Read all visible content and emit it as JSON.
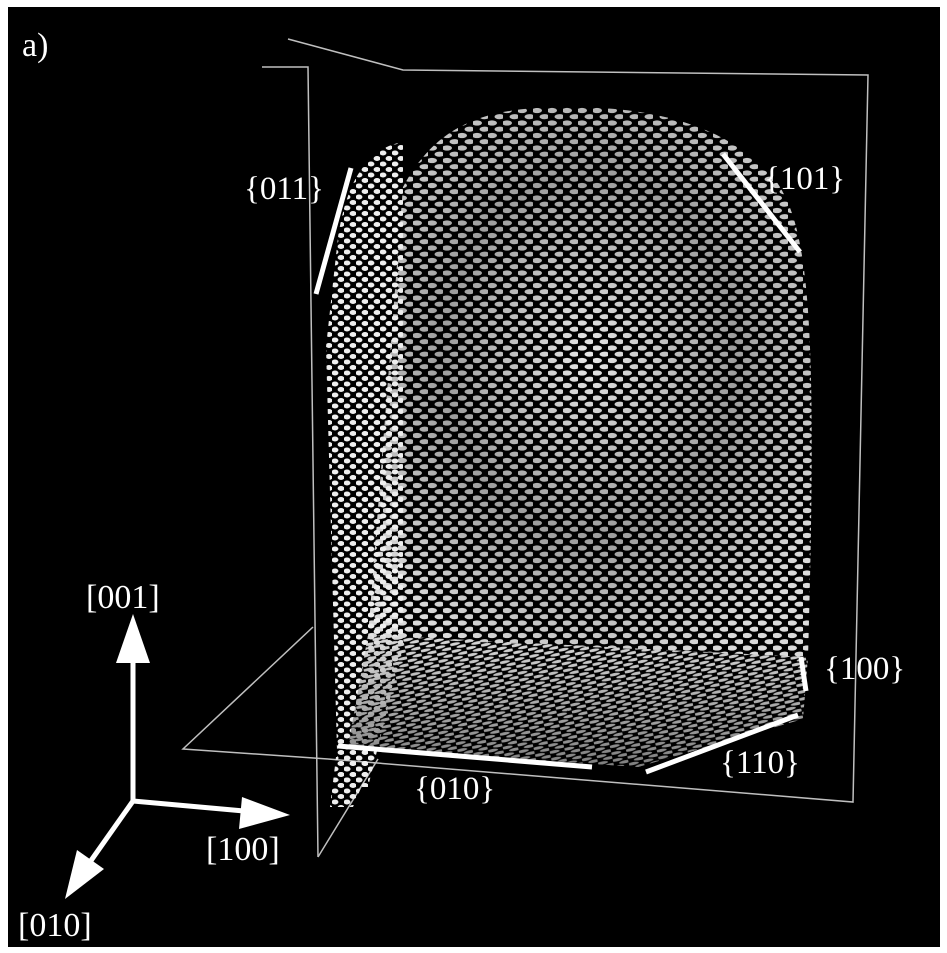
{
  "panel_label": "a)",
  "facets": {
    "f011": "{011}",
    "f101": "{101}",
    "f100": "{100}",
    "f110": "{110}",
    "f010": "{010}"
  },
  "axes": {
    "z": "[001]",
    "x": "[100]",
    "y": "[010]"
  },
  "colors": {
    "background": "#000000",
    "frame_border": "#ffffff",
    "lines": "#ffffff",
    "plane_edges": "#bfbfbf",
    "atoms": "#e8e8e8"
  }
}
